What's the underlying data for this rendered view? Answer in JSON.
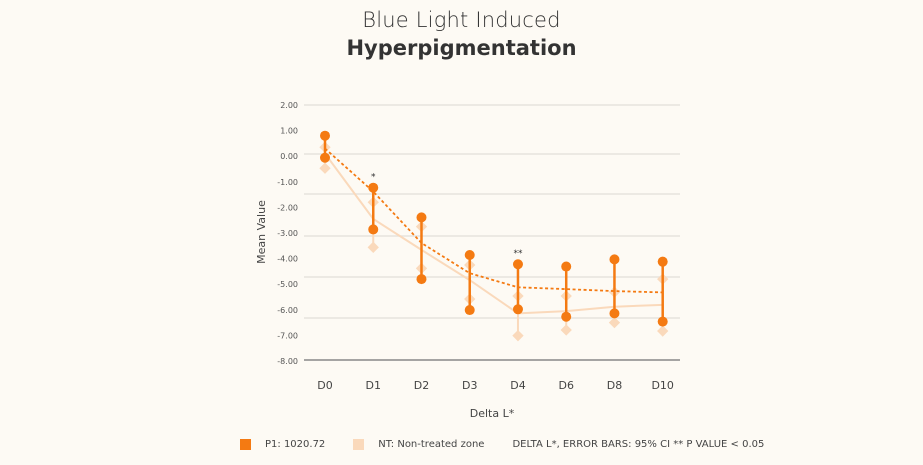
{
  "title_line1": "Blue Light Induced",
  "title_line2": "Hyperpigmentation",
  "legend": {
    "p1": "P1: 1020.72",
    "nt": "NT: Non-treated zone",
    "note": "DELTA L*, ERROR BARS: 95% CI ** P VALUE < 0.05"
  },
  "colors": {
    "p1": "#f47a12",
    "nt": "#fad9bb",
    "grid": "#e6e3dd",
    "axis": "#888888"
  },
  "chart_data": {
    "type": "line",
    "title": "Blue Light Induced Hyperpigmentation",
    "xlabel": "Delta L*",
    "ylabel": "Mean Value",
    "categories": [
      "D0",
      "D1",
      "D2",
      "D3",
      "D4",
      "D6",
      "D8",
      "D10"
    ],
    "ylim": [
      -8,
      2
    ],
    "yticks": [
      "2.00",
      "1.00",
      "0.00",
      "-1.00",
      "-2.00",
      "-3.00",
      "-4.00",
      "-5.00",
      "-6.00",
      "-7.00",
      "-8.00"
    ],
    "grid": true,
    "legend_position": "bottom",
    "series": [
      {
        "name": "P1: 1020.72",
        "mean": [
          0.3,
          -1.38,
          -3.39,
          -4.57,
          -5.12,
          -5.19,
          -5.27,
          -5.32
        ],
        "ci_upper": [
          0.8,
          -1.23,
          -2.39,
          -3.86,
          -4.22,
          -4.31,
          -4.03,
          -4.12
        ],
        "ci_lower": [
          -0.06,
          -2.86,
          -4.8,
          -6.01,
          -5.98,
          -6.27,
          -6.14,
          -6.46
        ]
      },
      {
        "name": "NT: Non-treated zone",
        "mean": [
          0.1,
          -2.45,
          -3.66,
          -4.84,
          -6.14,
          -6.05,
          -5.88,
          -5.81
        ],
        "ci_upper": [
          0.35,
          -1.8,
          -2.75,
          -4.25,
          -5.46,
          -5.46,
          -5.31,
          -4.8
        ],
        "ci_lower": [
          -0.47,
          -3.56,
          -4.38,
          -5.58,
          -7.01,
          -6.79,
          -6.5,
          -6.83
        ]
      }
    ],
    "annotations": [
      {
        "category": "D1",
        "text": "*"
      },
      {
        "category": "D4",
        "text": "**"
      }
    ]
  }
}
